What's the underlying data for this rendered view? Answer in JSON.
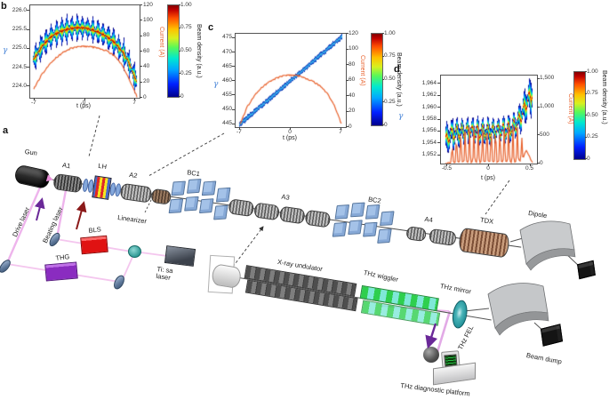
{
  "figure": {
    "panels": {
      "a": "a",
      "b": "b",
      "c": "c",
      "d": "d"
    }
  },
  "plots": {
    "b": {
      "ylabel": "γ",
      "right_label": "Current (A)",
      "xlabel": "t (ps)",
      "cbar_label": "Beam density (a.u.)"
    },
    "c": {
      "ylabel": "γ",
      "right_label": "Current (A)",
      "xlabel": "t (ps)",
      "cbar_label": "Beam density (a.u.)"
    },
    "d": {
      "ylabel": "γ",
      "right_label": "Current (A)",
      "xlabel": "t (ps)",
      "cbar_label": "Beam density (a.u.)"
    }
  },
  "colors": {
    "gamma_axis": "#4a86d8",
    "current": "#e8622d",
    "laser_pink": "#eeb4ec",
    "arrow_purple": "#6a2898",
    "arrow_darkred": "#8b1a1a"
  },
  "chart_data": [
    {
      "id": "b",
      "type": "heatmap+line",
      "x": {
        "label": "t (ps)",
        "tick_values": [
          -7,
          0,
          7
        ],
        "tick_labels": [
          "-7",
          "0",
          "7"
        ],
        "range": [
          -7.6,
          7.6
        ]
      },
      "y_left": {
        "label": "γ",
        "tick_values": [
          224.0,
          224.5,
          225.0,
          225.5,
          226.0
        ],
        "tick_labels": [
          "224.0",
          "224.5",
          "225.0",
          "225.5",
          "226.0"
        ],
        "range": [
          223.7,
          226.15
        ]
      },
      "y_right": {
        "label": "Current (A)",
        "tick_values": [
          0,
          20,
          40,
          60,
          80,
          100,
          120
        ],
        "tick_labels": [
          "0",
          "20",
          "40",
          "60",
          "80",
          "100",
          "120"
        ],
        "range": [
          0,
          120
        ]
      },
      "colorbar": {
        "label": "Beam density (a.u.)",
        "tick_values": [
          0,
          0.25,
          0.5,
          0.75,
          1
        ],
        "tick_labels": [
          "0",
          "0.25",
          "0.50",
          "0.75",
          "1.00"
        ]
      },
      "t_extent": [
        -7.2,
        7.25
      ],
      "gamma_centerline": [
        [
          -7.2,
          224.7
        ],
        [
          -6,
          225.05
        ],
        [
          -5,
          225.27
        ],
        [
          -4,
          225.4
        ],
        [
          -3,
          225.49
        ],
        [
          -2,
          225.54
        ],
        [
          -1,
          225.56
        ],
        [
          0,
          225.55
        ],
        [
          1,
          225.5
        ],
        [
          2,
          225.44
        ],
        [
          3,
          225.33
        ],
        [
          4,
          225.18
        ],
        [
          5,
          224.98
        ],
        [
          6,
          224.68
        ],
        [
          7.25,
          224.1
        ]
      ],
      "microbunches": 20,
      "band_halfwidth": 0.36,
      "spike_min": 0.18,
      "current": [
        [
          -7.2,
          10
        ],
        [
          -6,
          30
        ],
        [
          -5,
          42
        ],
        [
          -4,
          52
        ],
        [
          -3,
          59
        ],
        [
          -2,
          64
        ],
        [
          -1,
          66
        ],
        [
          0,
          67
        ],
        [
          1,
          66
        ],
        [
          2,
          64
        ],
        [
          3,
          61
        ],
        [
          4,
          55
        ],
        [
          5,
          45
        ],
        [
          6,
          28
        ],
        [
          7.25,
          1
        ]
      ]
    },
    {
      "id": "c",
      "type": "heatmap+line",
      "palette": "blue",
      "x": {
        "label": "t (ps)",
        "tick_values": [
          -7,
          0,
          7
        ],
        "tick_labels": [
          "-7",
          "0",
          "7"
        ],
        "range": [
          -7.6,
          7.6
        ]
      },
      "y_left": {
        "label": "γ",
        "tick_values": [
          445,
          450,
          455,
          460,
          465,
          470,
          475
        ],
        "tick_labels": [
          "445",
          "450",
          "455",
          "460",
          "465",
          "470",
          "475"
        ],
        "range": [
          444,
          476.5
        ]
      },
      "y_right": {
        "label": "Current (A)",
        "tick_values": [
          0,
          20,
          40,
          60,
          80,
          100,
          120
        ],
        "tick_labels": [
          "0",
          "20",
          "40",
          "60",
          "80",
          "100",
          "120"
        ],
        "range": [
          0,
          120
        ]
      },
      "colorbar": {
        "label": "Beam density (a.u.)",
        "tick_values": [
          0,
          0.25,
          0.5,
          0.75,
          1
        ],
        "tick_labels": [
          "0",
          "0.25",
          "0.50",
          "0.75",
          "1.00"
        ]
      },
      "t_extent": [
        -7.1,
        7.1
      ],
      "gamma_centerline": [
        [
          -7.1,
          444.8
        ],
        [
          7.1,
          475.6
        ]
      ],
      "microbunches": 0,
      "band_halfwidth": 0.9,
      "spike_min": 0.6,
      "current": [
        [
          -7.1,
          1
        ],
        [
          -6,
          26
        ],
        [
          -5,
          40
        ],
        [
          -4,
          51
        ],
        [
          -3,
          58
        ],
        [
          -2,
          63
        ],
        [
          -1,
          66
        ],
        [
          0,
          67
        ],
        [
          1,
          66
        ],
        [
          2,
          63
        ],
        [
          3,
          59
        ],
        [
          4,
          53
        ],
        [
          5,
          44
        ],
        [
          6,
          29
        ],
        [
          7.1,
          1
        ]
      ]
    },
    {
      "id": "d",
      "type": "heatmap+line",
      "x": {
        "label": "t (ps)",
        "tick_values": [
          -0.5,
          0,
          0.5
        ],
        "tick_labels": [
          "-0.5",
          "0",
          "0.5"
        ],
        "range": [
          -0.58,
          0.58
        ]
      },
      "y_left": {
        "label": "γ",
        "tick_values": [
          1952,
          1954,
          1956,
          1958,
          1960,
          1962,
          1964
        ],
        "tick_labels": [
          "1,952",
          "1,954",
          "1,956",
          "1,958",
          "1,960",
          "1,962",
          "1,964"
        ],
        "range": [
          1950.6,
          1965.4
        ]
      },
      "y_right": {
        "label": "Current (A)",
        "tick_values": [
          0,
          500,
          1000,
          1500
        ],
        "tick_labels": [
          "0",
          "500",
          "1,000",
          "1,500"
        ],
        "range": [
          0,
          1560
        ]
      },
      "colorbar": {
        "label": "Beam density (a.u.)",
        "tick_values": [
          0,
          0.25,
          0.5,
          0.75,
          1
        ],
        "tick_labels": [
          "0",
          "0.25",
          "0.50",
          "0.75",
          "1.00"
        ]
      },
      "t_extent": [
        -0.53,
        0.53
      ],
      "gamma_centerline": [
        [
          -0.53,
          1954.2
        ],
        [
          -0.48,
          1955.3
        ],
        [
          -0.4,
          1955.8
        ],
        [
          -0.3,
          1955.9
        ],
        [
          -0.2,
          1955.9
        ],
        [
          -0.1,
          1956.0
        ],
        [
          0,
          1956.0
        ],
        [
          0.1,
          1956.1
        ],
        [
          0.2,
          1956.3
        ],
        [
          0.28,
          1956.7
        ],
        [
          0.35,
          1957.6
        ],
        [
          0.42,
          1959.6
        ],
        [
          0.47,
          1961.3
        ],
        [
          0.53,
          1962.6
        ]
      ],
      "microbunches": 17,
      "band_halfwidth": 1.9,
      "spike_min": 0.42,
      "wiggle_amp": 1.0,
      "width_profile": [
        [
          -0.53,
          1.5
        ],
        [
          -0.45,
          1.15
        ],
        [
          -0.3,
          1
        ],
        [
          0.2,
          1
        ],
        [
          0.3,
          1.05
        ],
        [
          0.42,
          1.25
        ],
        [
          0.5,
          1.6
        ],
        [
          0.53,
          1.8
        ]
      ],
      "current_base": [
        [
          -0.53,
          0
        ],
        [
          -0.5,
          6
        ],
        [
          -0.46,
          25
        ],
        [
          -0.3,
          28
        ],
        [
          0,
          30
        ],
        [
          0.3,
          32
        ],
        [
          0.4,
          60
        ],
        [
          0.45,
          230
        ],
        [
          0.49,
          120
        ],
        [
          0.53,
          0
        ]
      ],
      "current_spikes": [
        [
          -0.445,
          300
        ],
        [
          -0.3925,
          480
        ],
        [
          -0.34,
          560
        ],
        [
          -0.2875,
          610
        ],
        [
          -0.235,
          630
        ],
        [
          -0.1825,
          610
        ],
        [
          -0.13,
          640
        ],
        [
          -0.0775,
          620
        ],
        [
          -0.025,
          650
        ],
        [
          0.0275,
          630
        ],
        [
          0.08,
          640
        ],
        [
          0.1325,
          610
        ],
        [
          0.185,
          650
        ],
        [
          0.2375,
          670
        ],
        [
          0.29,
          640
        ],
        [
          0.3425,
          610
        ],
        [
          0.395,
          430
        ]
      ],
      "spike_sigma": 0.0075
    }
  ],
  "diagram": {
    "labels": {
      "gun": "Gun",
      "a1": "A1",
      "lh": "LH",
      "a2": "A2",
      "linearizer": "Linearizer",
      "bc1": "BC1",
      "a3": "A3",
      "bc2": "BC2",
      "a4": "A4",
      "tdx": "TDX",
      "dipole": "Dipole",
      "drive_laser": "Drive laser",
      "beating_laser": "Beating laser",
      "bls": "BLS",
      "thg": "THG",
      "ti_sa": "Ti: sa laser",
      "xray_undulator": "X-ray undulator",
      "thz_wiggler": "THz wiggler",
      "thz_mirror": "THz mirror",
      "thz_fel": "THz FEL",
      "beam_dump": "Beam dump",
      "thz_diagnostic": "THz diagnostic platform"
    }
  }
}
